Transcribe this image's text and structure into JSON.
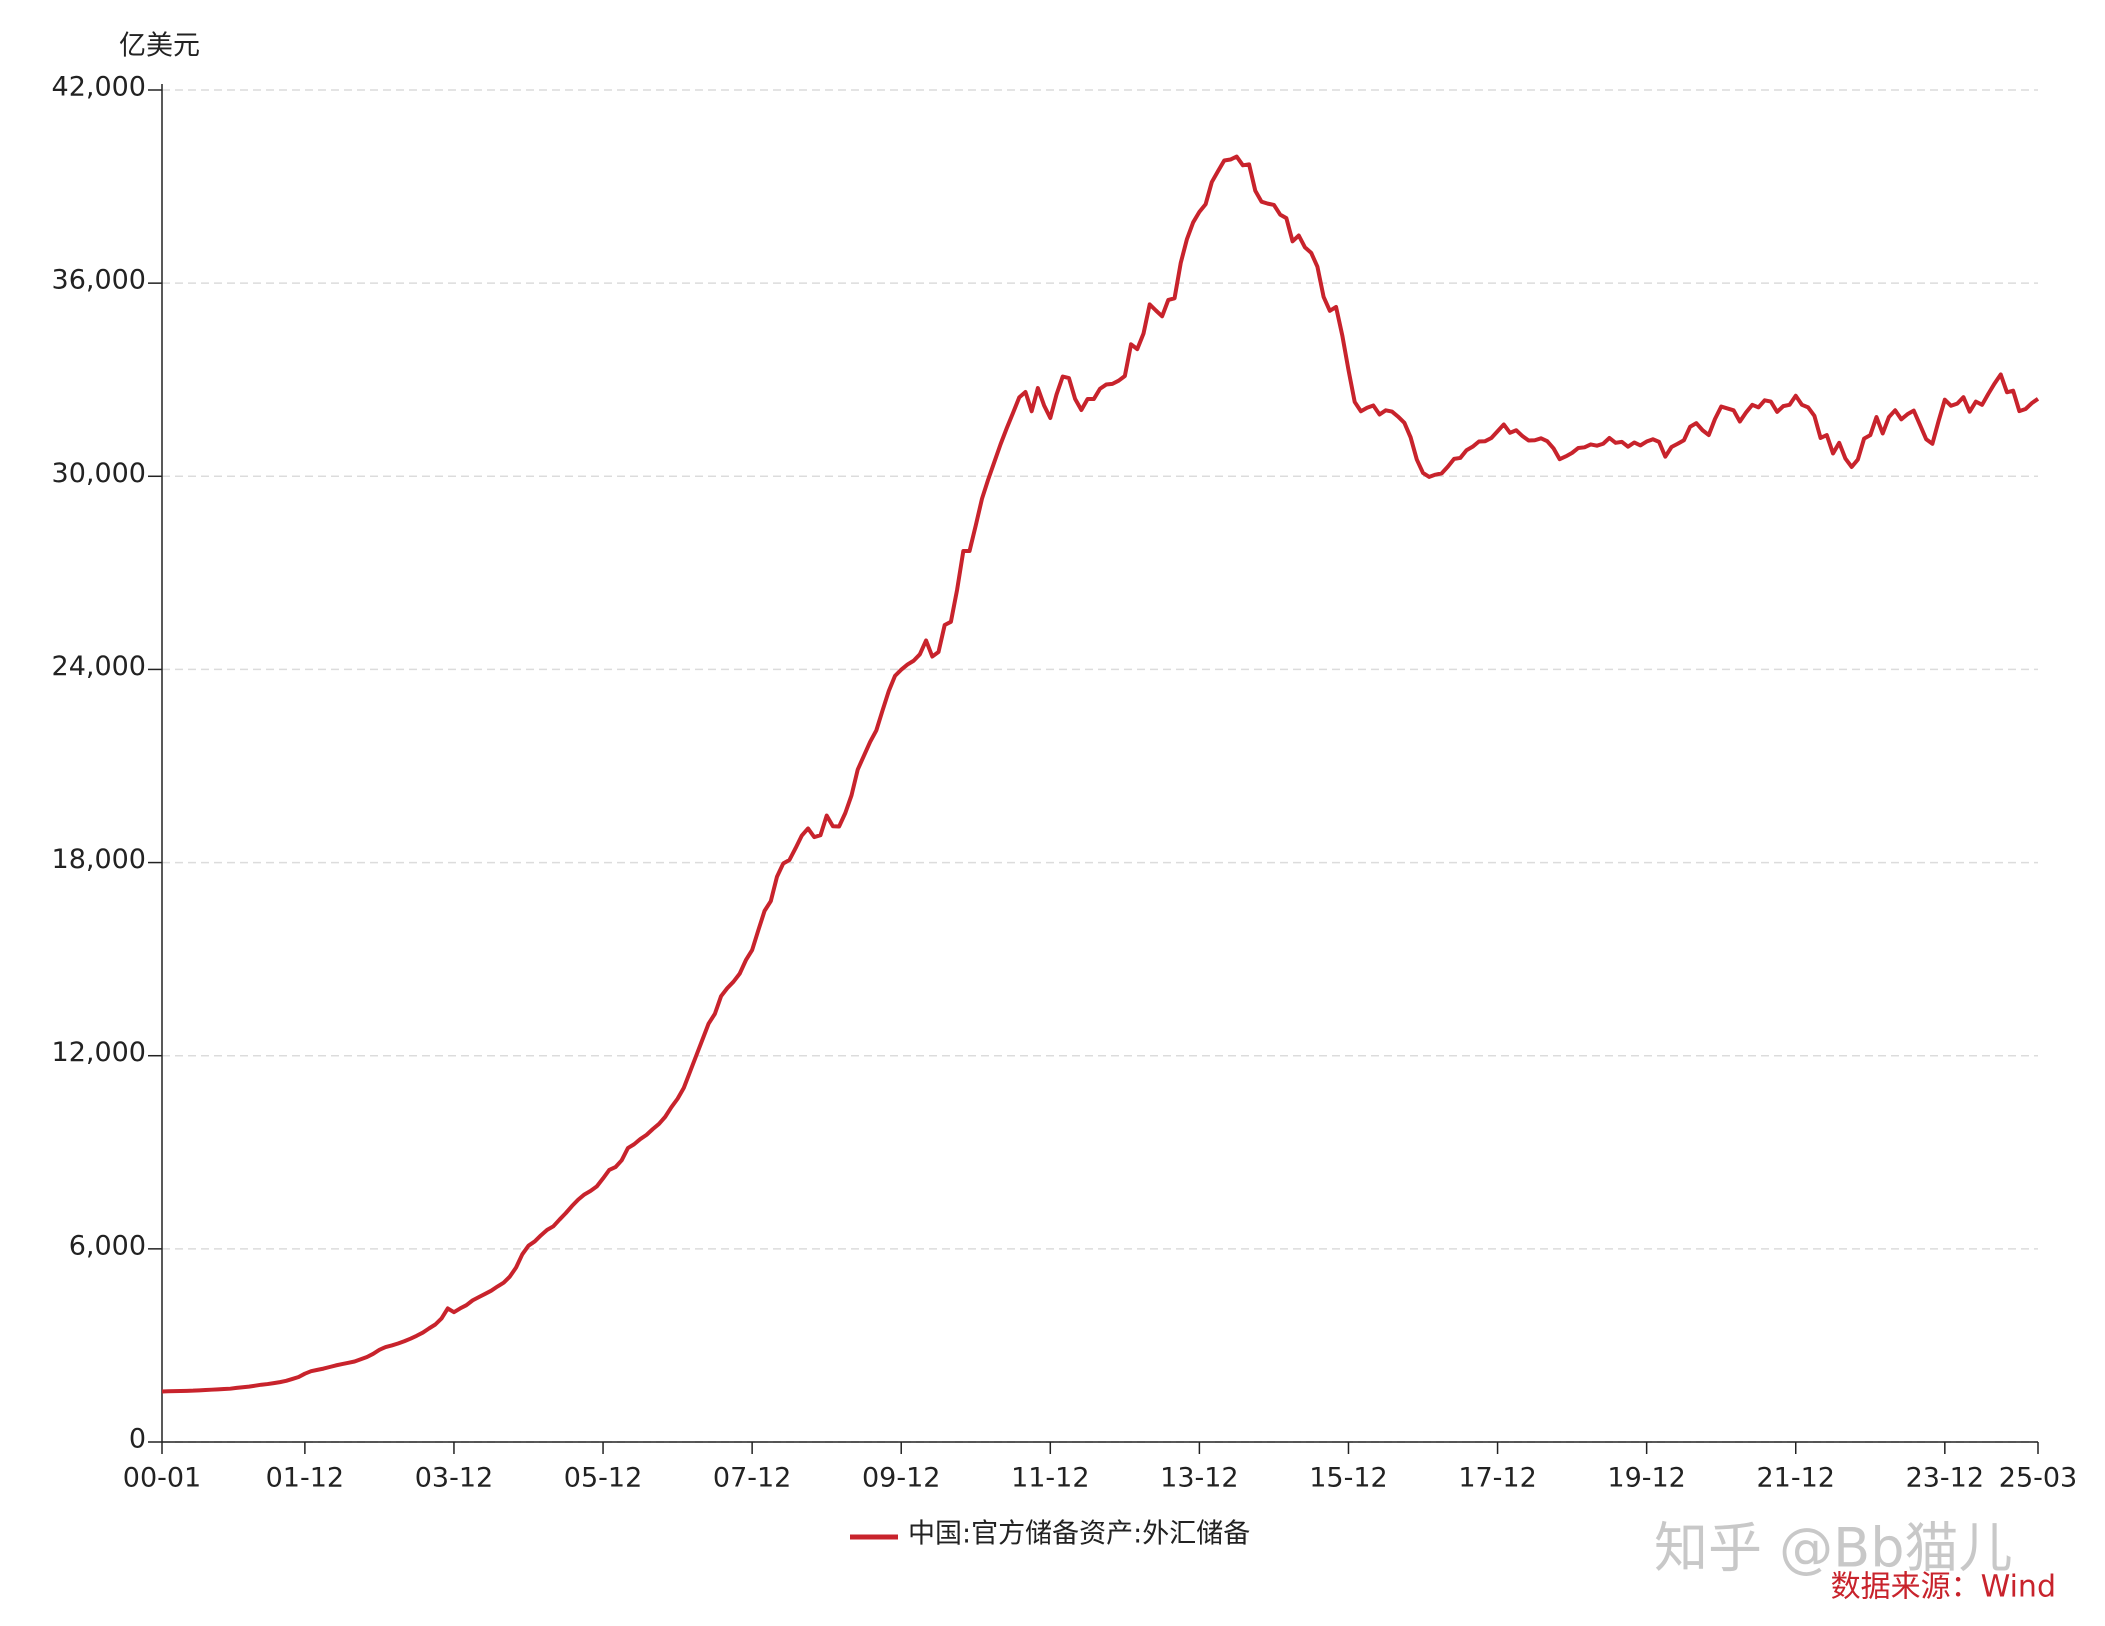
{
  "chart_data": {
    "type": "line",
    "y_label": "亿美元",
    "categories": [
      "00-01",
      null,
      null,
      null,
      null,
      null,
      null,
      null,
      null,
      null,
      null,
      null,
      null,
      null,
      null,
      null,
      null,
      null,
      null,
      null,
      null,
      null,
      null,
      "01-12",
      null,
      null,
      null,
      null,
      null,
      null,
      null,
      null,
      null,
      null,
      null,
      null,
      null,
      null,
      null,
      null,
      null,
      null,
      null,
      null,
      null,
      null,
      null,
      "03-12",
      null,
      null,
      null,
      null,
      null,
      null,
      null,
      null,
      null,
      null,
      null,
      null,
      null,
      null,
      null,
      null,
      null,
      null,
      null,
      null,
      null,
      null,
      null,
      "05-12",
      null,
      null,
      null,
      null,
      null,
      null,
      null,
      null,
      null,
      null,
      null,
      null,
      null,
      null,
      null,
      null,
      null,
      null,
      null,
      null,
      null,
      null,
      null,
      "07-12",
      null,
      null,
      null,
      null,
      null,
      null,
      null,
      null,
      null,
      null,
      null,
      null,
      null,
      null,
      null,
      null,
      null,
      null,
      null,
      null,
      null,
      null,
      null,
      "09-12",
      null,
      null,
      null,
      null,
      null,
      null,
      null,
      null,
      null,
      null,
      null,
      null,
      null,
      null,
      null,
      null,
      null,
      null,
      null,
      null,
      null,
      null,
      null,
      "11-12",
      null,
      null,
      null,
      null,
      null,
      null,
      null,
      null,
      null,
      null,
      null,
      null,
      null,
      null,
      null,
      null,
      null,
      null,
      null,
      null,
      null,
      null,
      null,
      "13-12",
      null,
      null,
      null,
      null,
      null,
      null,
      null,
      null,
      null,
      null,
      null,
      null,
      null,
      null,
      null,
      null,
      null,
      null,
      null,
      null,
      null,
      null,
      null,
      "15-12",
      null,
      null,
      null,
      null,
      null,
      null,
      null,
      null,
      null,
      null,
      null,
      null,
      null,
      null,
      null,
      null,
      null,
      null,
      null,
      null,
      null,
      null,
      null,
      "17-12",
      null,
      null,
      null,
      null,
      null,
      null,
      null,
      null,
      null,
      null,
      null,
      null,
      null,
      null,
      null,
      null,
      null,
      null,
      null,
      null,
      null,
      null,
      null,
      "19-12",
      null,
      null,
      null,
      null,
      null,
      null,
      null,
      null,
      null,
      null,
      null,
      null,
      null,
      null,
      null,
      null,
      null,
      null,
      null,
      null,
      null,
      null,
      null,
      "21-12",
      null,
      null,
      null,
      null,
      null,
      null,
      null,
      null,
      null,
      null,
      null,
      null,
      null,
      null,
      null,
      null,
      null,
      null,
      null,
      null,
      null,
      null,
      null,
      "23-12",
      null,
      null,
      null,
      null,
      null,
      null,
      null,
      null,
      null,
      null,
      null,
      null,
      null,
      null,
      "25-03"
    ],
    "series": [
      {
        "name": "中国:官方储备资产:外汇储备",
        "color": "#c8232c",
        "values": [
          1570,
          1575,
          1580,
          1585,
          1590,
          1595,
          1605,
          1615,
          1625,
          1635,
          1645,
          1656,
          1680,
          1700,
          1720,
          1750,
          1780,
          1800,
          1830,
          1860,
          1900,
          1960,
          2020,
          2122,
          2200,
          2240,
          2280,
          2330,
          2380,
          2420,
          2460,
          2500,
          2570,
          2640,
          2740,
          2864,
          2950,
          3000,
          3060,
          3130,
          3210,
          3300,
          3400,
          3530,
          3650,
          3840,
          4150,
          4033,
          4150,
          4250,
          4400,
          4500,
          4600,
          4700,
          4830,
          4950,
          5140,
          5420,
          5830,
          6099,
          6230,
          6420,
          6590,
          6700,
          6910,
          7110,
          7330,
          7530,
          7690,
          7800,
          7940,
          8189,
          8450,
          8540,
          8750,
          9130,
          9250,
          9410,
          9540,
          9720,
          9880,
          10100,
          10400,
          10663,
          11000,
          11500,
          12000,
          12500,
          13000,
          13300,
          13850,
          14100,
          14300,
          14550,
          14970,
          15282,
          15900,
          16500,
          16800,
          17560,
          17970,
          18080,
          18450,
          18840,
          19060,
          18790,
          18850,
          19460,
          19130,
          19120,
          19540,
          20090,
          20890,
          21320,
          21750,
          22110,
          22730,
          23330,
          23800,
          23992,
          24150,
          24270,
          24470,
          24900,
          24400,
          24540,
          25380,
          25480,
          26480,
          27680,
          27680,
          28473,
          29300,
          29900,
          30450,
          31000,
          31500,
          31970,
          32450,
          32620,
          32020,
          32740,
          32200,
          31811,
          32540,
          33100,
          33050,
          32400,
          32060,
          32400,
          32400,
          32720,
          32850,
          32870,
          32970,
          33116,
          34100,
          33950,
          34430,
          35340,
          35150,
          34970,
          35480,
          35530,
          36630,
          37370,
          37890,
          38213,
          38450,
          39140,
          39480,
          39810,
          39840,
          39932,
          39660,
          39690,
          38870,
          38530,
          38470,
          38430,
          38130,
          38020,
          37300,
          37480,
          37110,
          36940,
          36510,
          35570,
          35140,
          35260,
          34380,
          33304,
          32310,
          32020,
          32130,
          32200,
          31920,
          32050,
          32010,
          31850,
          31660,
          31210,
          30520,
          30105,
          29980,
          30050,
          30090,
          30300,
          30540,
          30570,
          30810,
          30920,
          31080,
          31090,
          31190,
          31399,
          31610,
          31350,
          31430,
          31250,
          31110,
          31120,
          31180,
          31090,
          30870,
          30530,
          30620,
          30727,
          30880,
          30900,
          30990,
          30950,
          31010,
          31190,
          31040,
          31070,
          30920,
          31050,
          30960,
          31079,
          31150,
          31070,
          30610,
          30910,
          31010,
          31120,
          31540,
          31650,
          31430,
          31280,
          31780,
          32165,
          32107,
          32050,
          31700,
          31980,
          32220,
          32140,
          32360,
          32320,
          32000,
          32180,
          32220,
          32502,
          32220,
          32140,
          31880,
          31190,
          31280,
          30710,
          31040,
          30550,
          30290,
          30520,
          31170,
          31277,
          31840,
          31330,
          31840,
          32050,
          31770,
          31930,
          32040,
          31600,
          31150,
          31010,
          31720,
          32380,
          32190,
          32258,
          32457,
          32008,
          32320,
          32220,
          32560,
          32880,
          33164,
          32610,
          32659,
          32024,
          32090,
          32272,
          32407
        ]
      }
    ],
    "ylim": [
      0,
      42000
    ],
    "yticks": [
      0,
      {
        "value": 6000,
        "label": "6,000"
      },
      {
        "value": 12000,
        "label": "12,000"
      },
      {
        "value": 18000,
        "label": "18,000"
      },
      {
        "value": 24000,
        "label": "24,000"
      },
      {
        "value": 30000,
        "label": "30,000"
      },
      {
        "value": 36000,
        "label": "36,000"
      },
      {
        "value": 42000,
        "label": "42,000"
      }
    ],
    "grid": true,
    "legend": "bottom",
    "watermark": "知乎 @Bb猫儿",
    "source": "数据来源：Wind"
  }
}
